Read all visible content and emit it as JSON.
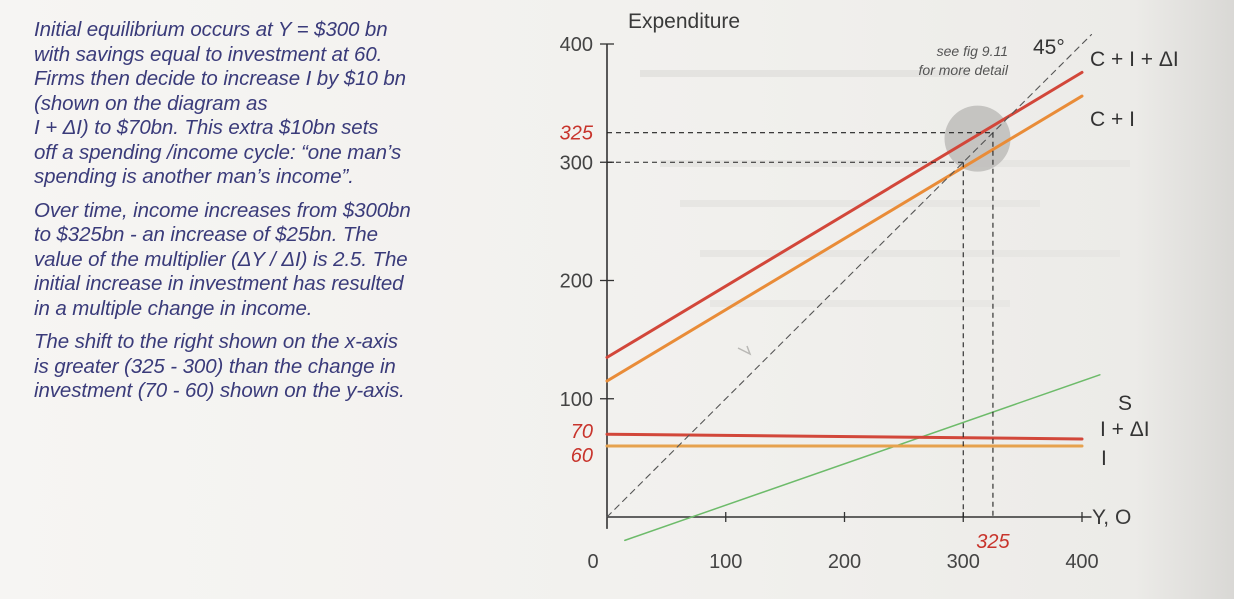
{
  "text_panel": {
    "paragraph_1": "Initial equilibrium occurs at Y = $300 bn\nwith savings equal to investment at 60.\nFirms then decide to increase I by $10  bn\n(shown on the diagram as\nI + ΔI) to $70bn. This extra $10bn sets\noff a spending /income cycle: “one man’s\nspending is another man’s income”.",
    "paragraph_2": "Over time, income increases from $300bn\nto $325bn - an increase of $25bn. The\nvalue of the multiplier (ΔY / ΔI) is 2.5. The\ninitial increase in investment has resulted\nin a multiple change in income.",
    "paragraph_3": "The shift to the right shown on the x-axis\nis greater (325 - 300) than the change in\ninvestment (70 - 60) shown on the y-axis."
  },
  "chart_data": {
    "type": "line",
    "ylabel": "Expenditure",
    "xlabel": "Y, O",
    "xlim": [
      0,
      400
    ],
    "ylim": [
      0,
      400
    ],
    "x_ticks": [
      "0",
      "100",
      "200",
      "300",
      "400"
    ],
    "y_ticks": [
      "100",
      "200",
      "300",
      "400"
    ],
    "highlight_x_label": "325",
    "highlight_y_labels": [
      "325",
      "70",
      "60"
    ],
    "guide_label": "45°",
    "note": "see fig 9.11\nfor more detail",
    "series": [
      {
        "name": "C + I + ΔI",
        "color": "#d2473a",
        "points": [
          [
            0,
            135
          ],
          [
            400,
            376
          ]
        ]
      },
      {
        "name": "C + I",
        "color": "#e98c38",
        "points": [
          [
            0,
            115
          ],
          [
            400,
            356
          ]
        ]
      },
      {
        "name": "S",
        "color": "#6dbb6a",
        "points": [
          [
            0,
            -25
          ],
          [
            400,
            115
          ]
        ]
      },
      {
        "name": "I + ΔI",
        "color": "#d2473a",
        "points": [
          [
            0,
            70
          ],
          [
            400,
            66
          ]
        ]
      },
      {
        "name": "I",
        "color": "#e6a24e",
        "points": [
          [
            0,
            60
          ],
          [
            400,
            60
          ]
        ]
      },
      {
        "name": "45°",
        "color": "#555555",
        "points": [
          [
            0,
            0
          ],
          [
            400,
            400
          ]
        ]
      }
    ],
    "equilibria": [
      [
        300,
        300
      ],
      [
        325,
        325
      ]
    ]
  },
  "colors": {
    "text": "#3a3b7a",
    "highlight": "#c8342c",
    "axis": "#333333",
    "circle": "#bdbcba"
  }
}
